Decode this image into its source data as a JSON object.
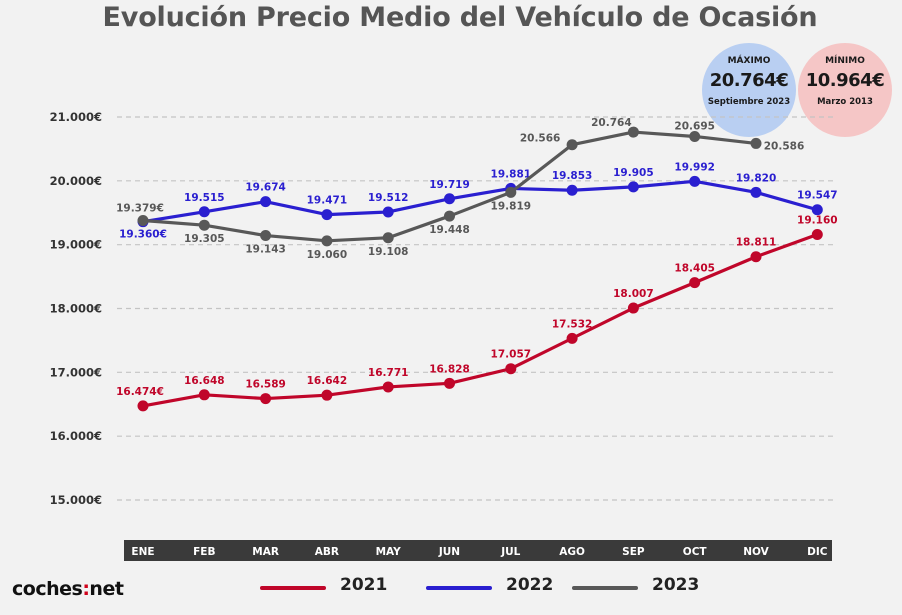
{
  "title": "Evolución Precio Medio del Vehículo de Ocasión",
  "badges": {
    "max": {
      "label": "MÁXIMO",
      "value": "20.764€",
      "sub": "Septiembre 2023"
    },
    "min": {
      "label": "MÍNIMO",
      "value": "10.964€",
      "sub": "Marzo 2013"
    }
  },
  "logo": {
    "text_a": "coches",
    "text_b": "net"
  },
  "colors": {
    "2021": "#c0062a",
    "2022": "#2a1fd0",
    "2023": "#585858",
    "axis_bar": "#3a3a3a"
  },
  "chart_data": {
    "type": "line",
    "title": "Evolución Precio Medio del Vehículo de Ocasión",
    "categories": [
      "ENE",
      "FEB",
      "MAR",
      "ABR",
      "MAY",
      "JUN",
      "JUL",
      "AGO",
      "SEP",
      "OCT",
      "NOV",
      "DIC"
    ],
    "yticks": [
      "15.000€",
      "16.000€",
      "17.000€",
      "18.000€",
      "19.000€",
      "20.000€",
      "21.000€"
    ],
    "ylim": [
      15000,
      21000
    ],
    "grid": true,
    "legend_position": "bottom",
    "series": [
      {
        "name": "2021",
        "color": "#c0062a",
        "values": [
          16474,
          16648,
          16589,
          16642,
          16771,
          16828,
          17057,
          17532,
          18007,
          18405,
          18811,
          19160
        ],
        "labels": [
          "16.474€",
          "16.648",
          "16.589",
          "16.642",
          "16.771",
          "16.828",
          "17.057",
          "17.532",
          "18.007",
          "18.405",
          "18.811",
          "19.160"
        ]
      },
      {
        "name": "2022",
        "color": "#2a1fd0",
        "values": [
          19360,
          19515,
          19674,
          19471,
          19512,
          19719,
          19881,
          19853,
          19905,
          19992,
          19820,
          19547
        ],
        "labels": [
          "19.360€",
          "19.515",
          "19.674",
          "19.471",
          "19.512",
          "19.719",
          "19.881",
          "19.853",
          "19.905",
          "19.992",
          "19.820",
          "19.547"
        ]
      },
      {
        "name": "2023",
        "color": "#585858",
        "values": [
          19379,
          19305,
          19143,
          19060,
          19108,
          19448,
          19819,
          20566,
          20764,
          20695,
          20586,
          null
        ],
        "labels": [
          "19.379€",
          "19.305",
          "19.143",
          "19.060",
          "19.108",
          "19.448",
          "19.819",
          "20.566",
          "20.764",
          "20.695",
          "20.586",
          null
        ]
      }
    ]
  }
}
